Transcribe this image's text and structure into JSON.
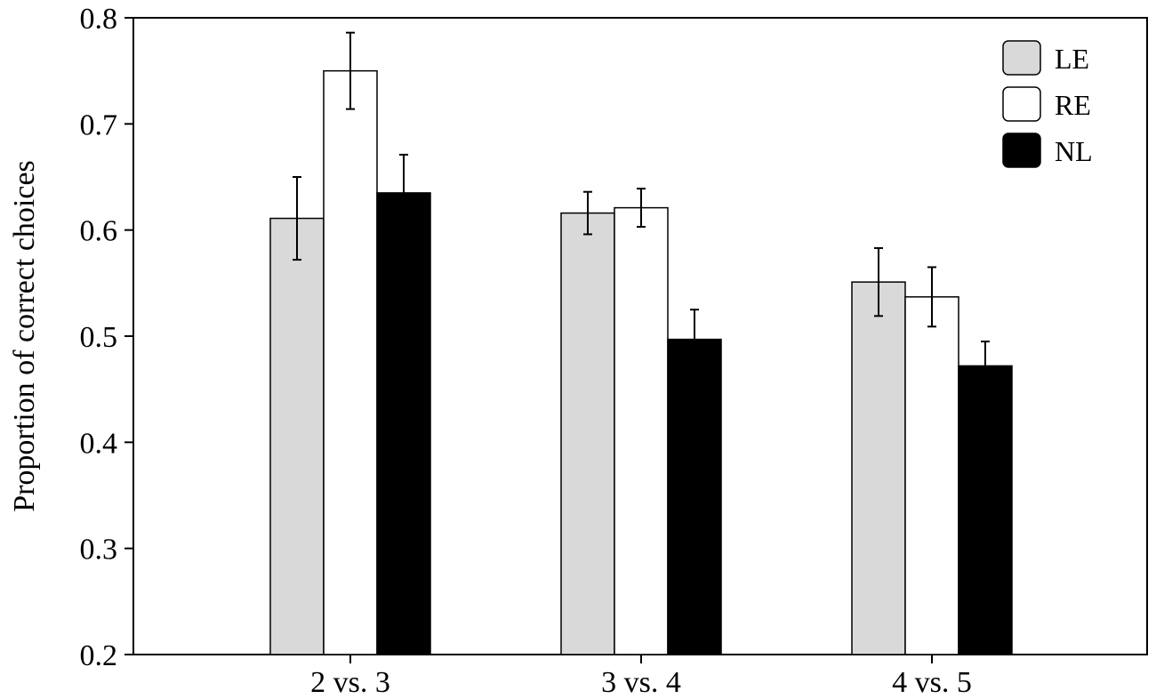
{
  "chart_data": {
    "type": "bar",
    "title": "",
    "xlabel": "",
    "ylabel": "Proportion of correct choices",
    "ylim": [
      0.2,
      0.8
    ],
    "yticks": [
      0.2,
      0.3,
      0.4,
      0.5,
      0.6,
      0.7,
      0.8
    ],
    "ytick_labels": [
      "0.2",
      "0.3",
      "0.4",
      "0.5",
      "0.6",
      "0.7",
      "0.8"
    ],
    "categories": [
      "2 vs. 3",
      "3 vs. 4",
      "4 vs. 5"
    ],
    "grid": false,
    "legend_position": "top-right",
    "series": [
      {
        "name": "LE",
        "color": "#d9d9d9",
        "values": [
          0.611,
          0.616,
          0.551
        ],
        "errors": [
          0.039,
          0.02,
          0.032
        ]
      },
      {
        "name": "RE",
        "color": "#ffffff",
        "values": [
          0.75,
          0.621,
          0.537
        ],
        "errors": [
          0.036,
          0.018,
          0.028
        ]
      },
      {
        "name": "NL",
        "color": "#000000",
        "values": [
          0.635,
          0.497,
          0.472
        ],
        "errors": [
          0.036,
          0.028,
          0.023
        ]
      }
    ]
  }
}
